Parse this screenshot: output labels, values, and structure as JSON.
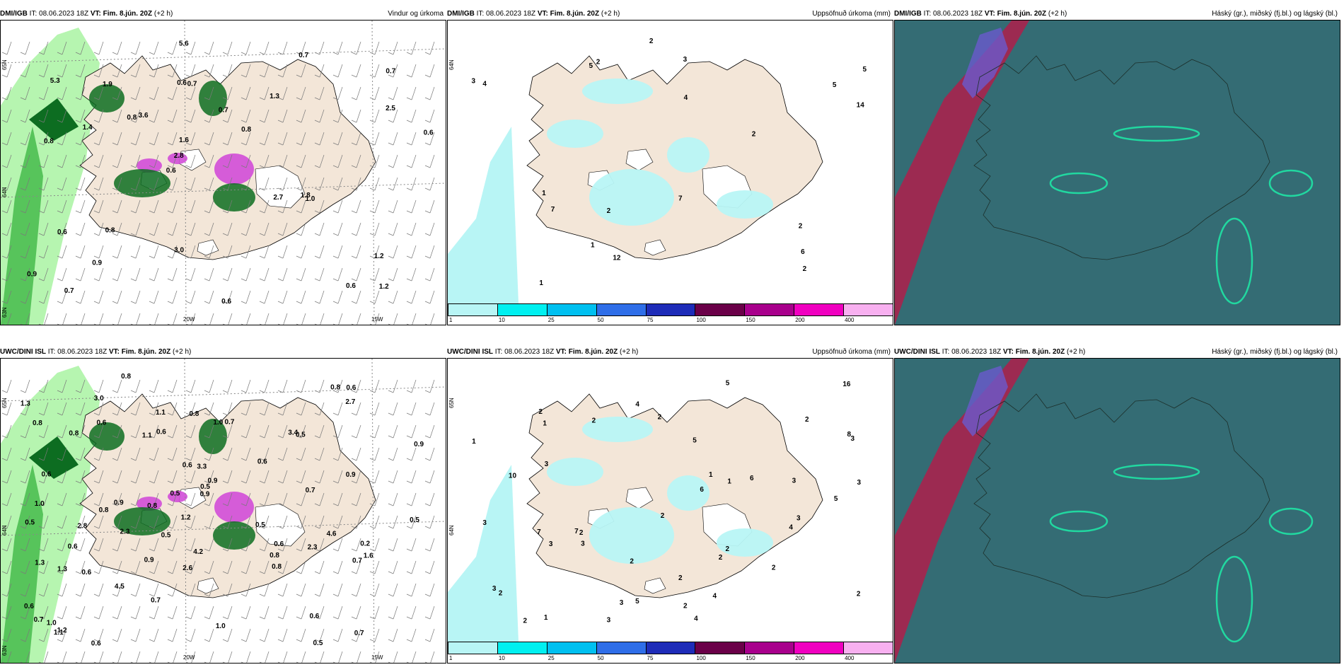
{
  "panels": [
    {
      "model": "DMI/IGB",
      "it": "IT: 08.06.2023 18Z",
      "vt": "VT: Fim. 8.jún. 20Z",
      "offset": "(+2 h)",
      "title": "Vindur og úrkoma",
      "type": "wind",
      "labels": [
        "1.2",
        "0.8",
        "0.7",
        "0.6",
        "1.3",
        "0.7",
        "0.6",
        "0.7",
        "0.6",
        "3.6",
        "0.9",
        "0.9",
        "0.7",
        "0.8",
        "1.0",
        "5.3",
        "5.6",
        "0.6",
        "2.7",
        "2.5",
        "2.8",
        "3.0",
        "1.6",
        "1.9",
        "0.7",
        "0.8",
        "0.6",
        "1.2",
        "1.8",
        "0.6",
        "0.8",
        "1.4"
      ],
      "axes": [
        "65N",
        "64N",
        "63N",
        "20W",
        "15W"
      ]
    },
    {
      "model": "DMI/IGB",
      "it": "IT: 08.06.2023 18Z",
      "vt": "VT: Fim. 8.jún. 20Z",
      "offset": "(+2 h)",
      "title": "Uppsöfnuð úrkoma (mm)",
      "type": "accum",
      "labels": [
        "2",
        "2",
        "1",
        "1",
        "2",
        "3",
        "2",
        "1",
        "5",
        "7",
        "12",
        "14",
        "4",
        "5",
        "6",
        "4",
        "2",
        "5",
        "3",
        "2",
        "7"
      ],
      "axes": [
        "64N"
      ],
      "colorbar": [
        "1",
        "10",
        "25",
        "50",
        "75",
        "100",
        "150",
        "200",
        "400"
      ]
    },
    {
      "model": "DMI/IGB",
      "it": "IT: 08.06.2023 18Z",
      "vt": "VT: Fim. 8.jún. 20Z",
      "offset": "(+2 h)",
      "title": "Háský (gr.), miðský (fj.bl.) og lágský (bl.)",
      "type": "cloud"
    },
    {
      "model": "UWC/DINI ISL",
      "it": "IT: 08.06.2023 18Z",
      "vt": "VT: Fim. 8.jún. 20Z",
      "offset": "(+2 h)",
      "title": "",
      "type": "wind",
      "labels": [
        "0.8",
        "0.8",
        "0.8",
        "0.7",
        "0.6",
        "0.5",
        "0.7",
        "0.6",
        "0.5",
        "1.0",
        "0.7",
        "0.7",
        "1.1",
        "0.7",
        "0.6",
        "0.5",
        "0.8",
        "0.6",
        "0.9",
        "0.5",
        "0.6",
        "0.7",
        "4.2",
        "3.4",
        "1.0",
        "0.2",
        "0.8",
        "1.0",
        "0.9",
        "0.6",
        "0.5",
        "0.5",
        "0.6",
        "3.3",
        "1.1",
        "0.9",
        "1.0",
        "2.3",
        "2.8",
        "2.3",
        "0.6",
        "0.8",
        "0.9",
        "4.6",
        "3.0",
        "0.5",
        "1.3",
        "0.6",
        "1.2",
        "0.8",
        "0.9",
        "1.2",
        "1.1",
        "1.6",
        "1.3",
        "2.6",
        "0.6",
        "0.9",
        "1.3",
        "4.5",
        "2.7",
        "0.6",
        "0.8",
        "0.5",
        "0.6",
        "0.8"
      ],
      "axes": [
        "65N",
        "64N",
        "63N",
        "20W",
        "15W"
      ]
    },
    {
      "model": "UWC/DINI ISL",
      "it": "IT: 08.06.2023 18Z",
      "vt": "VT: Fim. 8.jún. 20Z",
      "offset": "(+2 h)",
      "title": "Uppsöfnuð úrkoma (mm)",
      "type": "accum",
      "labels": [
        "2",
        "3",
        "2",
        "1",
        "3",
        "4",
        "5",
        "3",
        "1",
        "2",
        "3",
        "2",
        "8",
        "6",
        "7",
        "5",
        "3",
        "2",
        "1",
        "4",
        "3",
        "2",
        "10",
        "2",
        "2",
        "3",
        "4",
        "3",
        "2",
        "2",
        "7",
        "5",
        "6",
        "2",
        "3",
        "4",
        "5",
        "3",
        "1",
        "2",
        "16",
        "2",
        "3",
        "2",
        "1",
        "2"
      ],
      "axes": [
        "65N",
        "64N"
      ],
      "colorbar": [
        "1",
        "10",
        "25",
        "50",
        "75",
        "100",
        "150",
        "200",
        "400"
      ]
    },
    {
      "model": "UWC/DINI ISL",
      "it": "IT: 08.06.2023 18Z",
      "vt": "VT: Fim. 8.jún. 20Z",
      "offset": "(+2 h)",
      "title": "Háský (gr.), miðský (fj.bl.) og lágský (bl.)",
      "type": "cloud"
    }
  ],
  "colors": {
    "land": "#f3e6d8",
    "sea": "#ffffff",
    "precipLight": "#b6f5b0",
    "precipMid": "#57c45b",
    "precipDark": "#0d6d21",
    "precipHeavy": "#d14cd8",
    "accum": "#b8f5f5",
    "cloudBase": "#3e6a5d",
    "cloudMid": "#2c6e86",
    "cloudHigh": "#a7234e",
    "cloudEdge": "#21d8a0",
    "colorbar": [
      "#b8f5f5",
      "#00f0f0",
      "#00c0f0",
      "#2f6ee8",
      "#1e2cb8",
      "#6a0048",
      "#a8008c",
      "#f000c0",
      "#f8b0f0"
    ]
  }
}
